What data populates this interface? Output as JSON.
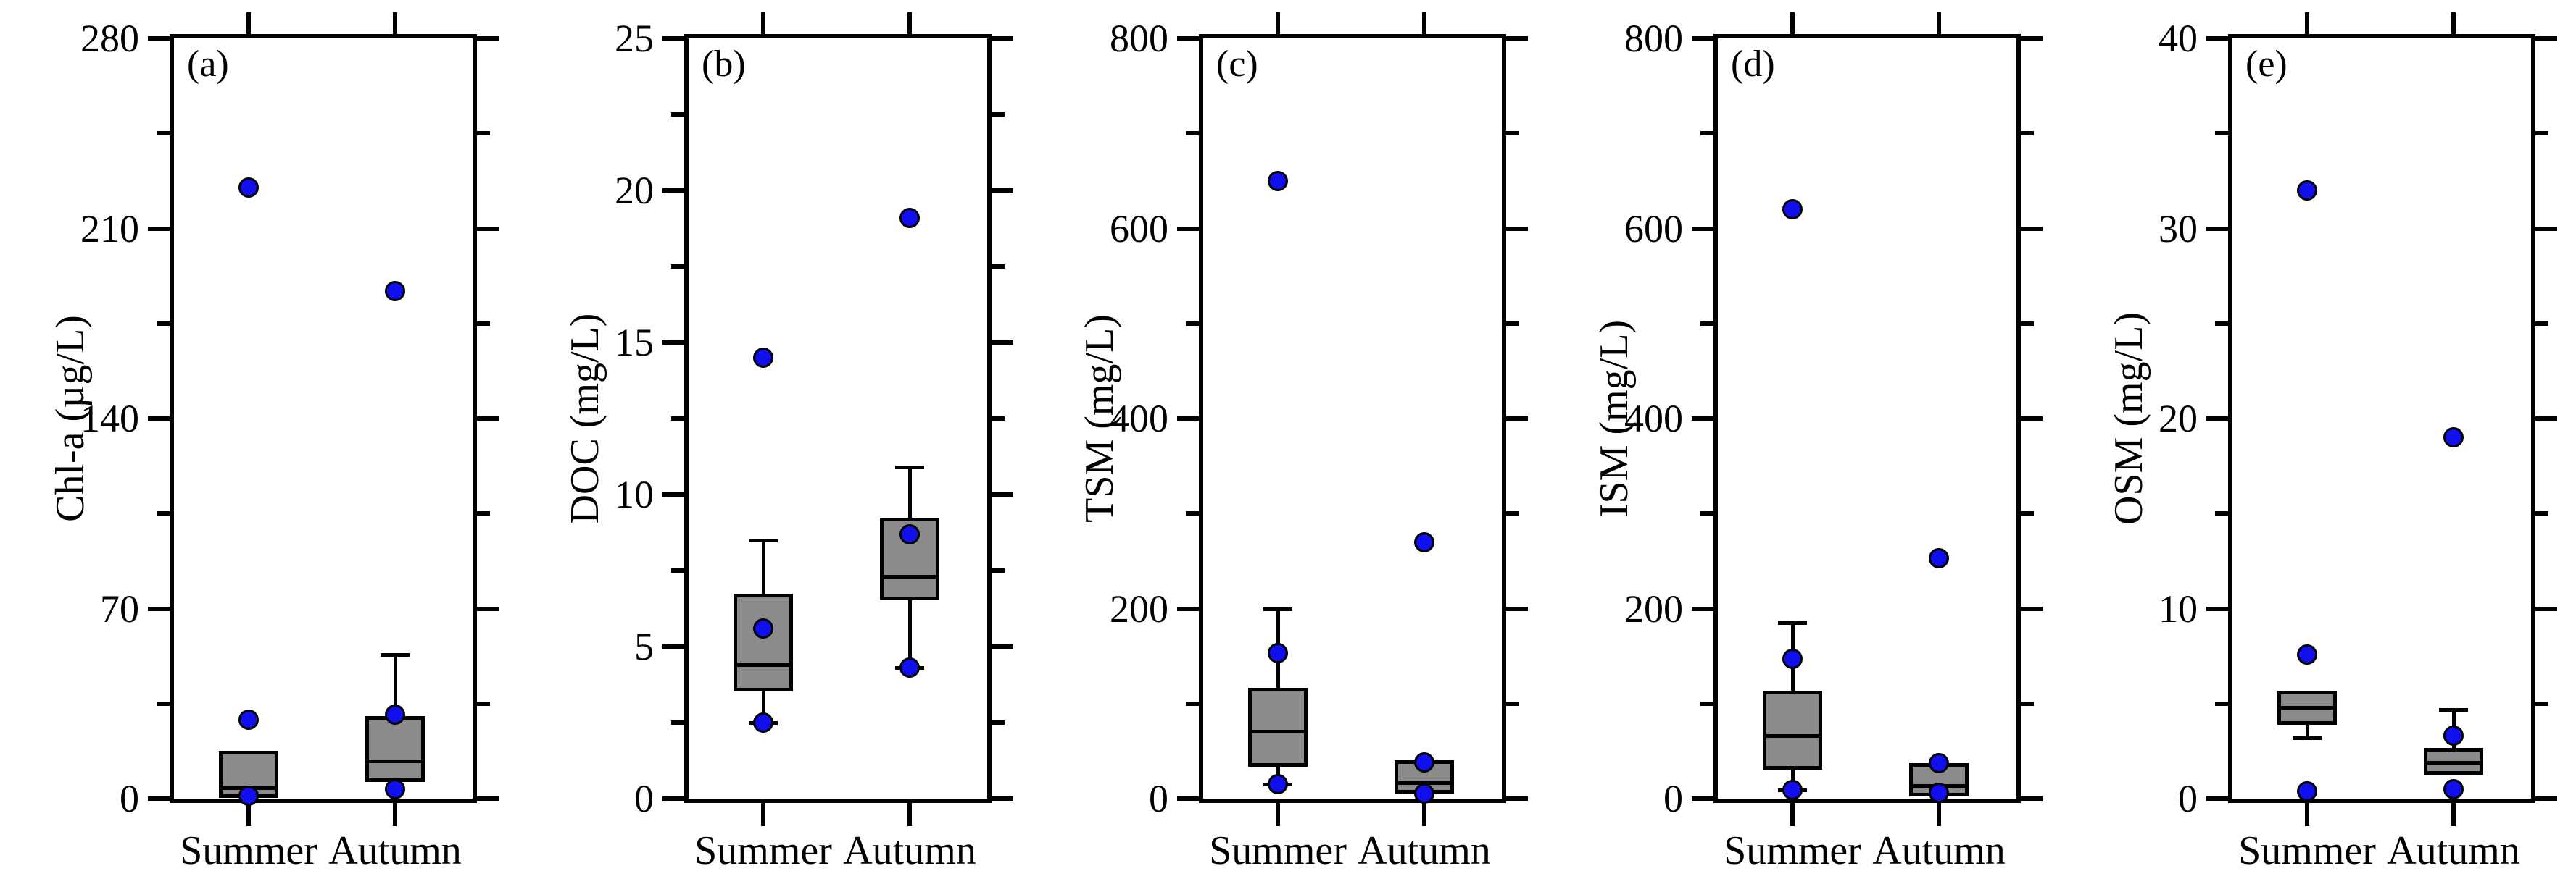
{
  "figure": {
    "background": "#ffffff",
    "categories": [
      "Summer",
      "Autumn"
    ]
  },
  "colors": {
    "axis": "#000000",
    "text": "#000000",
    "box_fill": "#8b8b8b",
    "box_border": "#000000",
    "point_fill": "#1010ee"
  },
  "chart_data": [
    {
      "type": "box",
      "panel_label": "(a)",
      "ylabel": "Chl-a (µg/L)",
      "ylim": [
        0,
        280
      ],
      "yticks": [
        0,
        70,
        140,
        210,
        280
      ],
      "yminor": [
        35,
        105,
        175,
        245
      ],
      "categories": [
        "Summer",
        "Autumn"
      ],
      "series": [
        {
          "category": "Summer",
          "q1": 1,
          "median": 4,
          "q3": 17,
          "whisker_low": null,
          "whisker_high": null,
          "points": [
            225,
            29,
            1
          ]
        },
        {
          "category": "Autumn",
          "q1": 7,
          "median": 14,
          "q3": 30,
          "whisker_low": null,
          "whisker_high": 53,
          "points": [
            187,
            31,
            3.5
          ]
        }
      ]
    },
    {
      "type": "box",
      "panel_label": "(b)",
      "ylabel": "DOC (mg/L)",
      "ylim": [
        0,
        25
      ],
      "yticks": [
        0,
        5,
        10,
        15,
        20,
        25
      ],
      "yminor": [
        2.5,
        7.5,
        12.5,
        17.5,
        22.5
      ],
      "categories": [
        "Summer",
        "Autumn"
      ],
      "series": [
        {
          "category": "Summer",
          "q1": 3.6,
          "median": 4.4,
          "q3": 6.7,
          "whisker_low": 2.5,
          "whisker_high": 8.5,
          "points": [
            14.5,
            5.6,
            2.5
          ]
        },
        {
          "category": "Autumn",
          "q1": 6.6,
          "median": 7.3,
          "q3": 9.2,
          "whisker_low": 4.3,
          "whisker_high": 10.9,
          "points": [
            19.1,
            8.7,
            4.3
          ]
        }
      ]
    },
    {
      "type": "box",
      "panel_label": "(c)",
      "ylabel": "TSM (mg/L)",
      "ylim": [
        0,
        800
      ],
      "yticks": [
        0,
        200,
        400,
        600,
        800
      ],
      "yminor": [
        100,
        300,
        500,
        700
      ],
      "categories": [
        "Summer",
        "Autumn"
      ],
      "series": [
        {
          "category": "Summer",
          "q1": 36,
          "median": 71,
          "q3": 115,
          "whisker_low": 15,
          "whisker_high": 200,
          "points": [
            650,
            153,
            15
          ]
        },
        {
          "category": "Autumn",
          "q1": 8,
          "median": 17,
          "q3": 39,
          "whisker_low": null,
          "whisker_high": null,
          "points": [
            270,
            38,
            5
          ]
        }
      ]
    },
    {
      "type": "box",
      "panel_label": "(d)",
      "ylabel": "ISM (mg/L)",
      "ylim": [
        0,
        800
      ],
      "yticks": [
        0,
        200,
        400,
        600,
        800
      ],
      "yminor": [
        100,
        300,
        500,
        700
      ],
      "categories": [
        "Summer",
        "Autumn"
      ],
      "series": [
        {
          "category": "Summer",
          "q1": 33,
          "median": 66,
          "q3": 112,
          "whisker_low": 9,
          "whisker_high": 185,
          "points": [
            620,
            147,
            9
          ]
        },
        {
          "category": "Autumn",
          "q1": 5,
          "median": 14,
          "q3": 36,
          "whisker_low": null,
          "whisker_high": null,
          "points": [
            253,
            37,
            6
          ]
        }
      ]
    },
    {
      "type": "box",
      "panel_label": "(e)",
      "ylabel": "OSM (mg/L)",
      "ylim": [
        0,
        40
      ],
      "yticks": [
        0,
        10,
        20,
        30,
        40
      ],
      "yminor": [
        5,
        15,
        25,
        35
      ],
      "categories": [
        "Summer",
        "Autumn"
      ],
      "series": [
        {
          "category": "Summer",
          "q1": 4.0,
          "median": 4.8,
          "q3": 5.6,
          "whisker_low": 3.2,
          "whisker_high": null,
          "points": [
            32,
            7.6,
            0.4
          ]
        },
        {
          "category": "Autumn",
          "q1": 1.4,
          "median": 1.9,
          "q3": 2.6,
          "whisker_low": null,
          "whisker_high": 4.7,
          "points": [
            19,
            3.3,
            0.5
          ]
        }
      ]
    }
  ]
}
